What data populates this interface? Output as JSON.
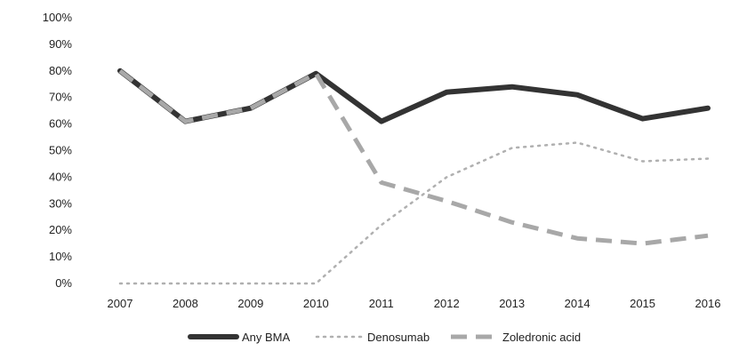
{
  "chart_data": {
    "type": "line",
    "title": "",
    "xlabel": "",
    "ylabel": "",
    "x": [
      "2007",
      "2008",
      "2009",
      "2010",
      "2011",
      "2012",
      "2013",
      "2014",
      "2015",
      "2016"
    ],
    "ylim": [
      0,
      100
    ],
    "y_ticks": [
      "0%",
      "10%",
      "20%",
      "30%",
      "40%",
      "50%",
      "60%",
      "70%",
      "80%",
      "90%",
      "100%"
    ],
    "grid": false,
    "legend_position": "bottom",
    "series": [
      {
        "name": "Any BMA",
        "values": [
          80,
          61,
          66,
          79,
          61,
          72,
          74,
          71,
          62,
          66
        ],
        "color": "#333333",
        "style": "solid"
      },
      {
        "name": "Denosumab",
        "values": [
          0,
          0,
          0,
          0,
          22,
          40,
          51,
          53,
          46,
          47
        ],
        "color": "#b0b0b0",
        "style": "dotted"
      },
      {
        "name": "Zoledronic acid",
        "values": [
          80,
          61,
          66,
          79,
          38,
          31,
          23,
          17,
          15,
          18
        ],
        "color": "#a8a8a8",
        "style": "dashed"
      }
    ]
  }
}
